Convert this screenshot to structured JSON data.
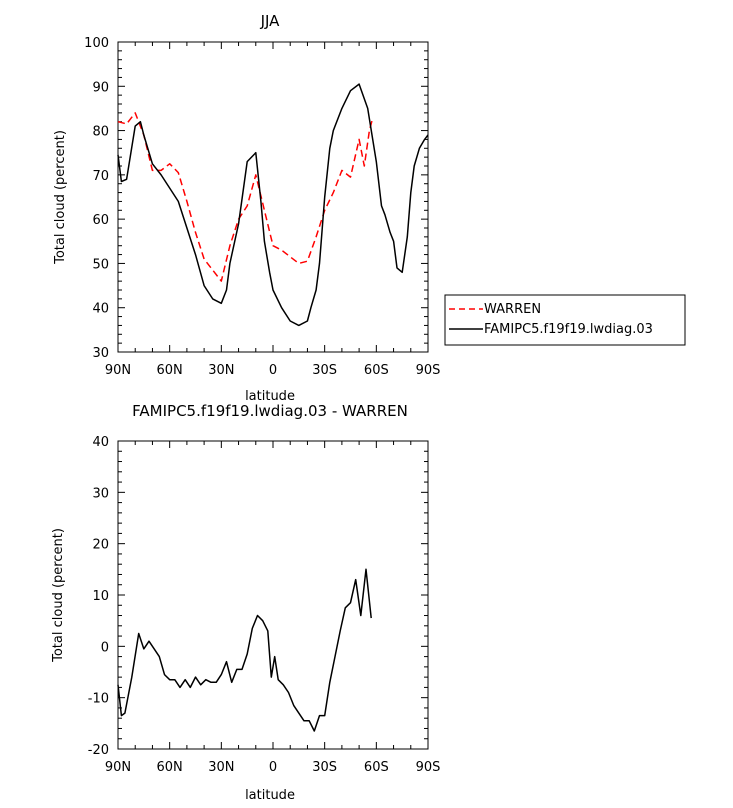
{
  "chart_data": [
    {
      "type": "line",
      "title": "JJA",
      "xlabel": "latitude",
      "ylabel": "Total cloud (percent)",
      "xlim": [
        90,
        -90
      ],
      "ylim": [
        30,
        100
      ],
      "x_ticks": [
        90,
        60,
        30,
        0,
        -30,
        -60,
        -90
      ],
      "x_tick_labels": [
        "90N",
        "60N",
        "30N",
        "0",
        "30S",
        "60S",
        "90S"
      ],
      "y_ticks": [
        30,
        40,
        50,
        60,
        70,
        80,
        90,
        100
      ],
      "y_tick_labels": [
        "30",
        "40",
        "50",
        "60",
        "70",
        "80",
        "90",
        "100"
      ],
      "legend": {
        "placement": "right"
      },
      "series": [
        {
          "name": "WARREN",
          "color": "#ff0000",
          "dash": "dashed",
          "x": [
            90,
            85,
            80,
            75,
            70,
            65,
            60,
            55,
            50,
            45,
            40,
            35,
            30,
            25,
            20,
            15,
            10,
            5,
            0,
            -5,
            -10,
            -15,
            -20,
            -25,
            -30,
            -35,
            -40,
            -45,
            -50,
            -53,
            -56,
            -58
          ],
          "y": [
            82,
            81.5,
            84,
            79,
            71,
            71,
            72.5,
            70.5,
            64,
            57,
            51,
            48.5,
            46,
            54,
            60,
            63,
            70,
            62,
            54,
            53,
            51.5,
            50,
            50.5,
            56,
            62,
            66,
            71,
            69.5,
            78,
            72,
            80,
            83
          ]
        },
        {
          "name": "FAMIPC5.f19f19.lwdiag.03",
          "color": "#000000",
          "dash": "solid",
          "x": [
            90,
            88,
            85,
            80,
            77,
            75,
            70,
            65,
            60,
            55,
            50,
            45,
            40,
            35,
            30,
            27,
            25,
            20,
            15,
            10,
            7,
            5,
            2,
            0,
            -5,
            -10,
            -15,
            -20,
            -22,
            -25,
            -27,
            -30,
            -33,
            -35,
            -40,
            -45,
            -50,
            -55,
            -60,
            -63,
            -65,
            -68,
            -70,
            -72,
            -75,
            -78,
            -80,
            -82,
            -85,
            -88,
            -90
          ],
          "y": [
            74.5,
            68.5,
            69,
            81,
            82,
            79,
            72.5,
            70,
            67,
            64,
            58,
            52,
            45,
            42,
            41,
            44,
            50,
            59,
            73,
            75,
            64,
            55,
            48,
            44,
            40,
            37,
            36,
            37,
            40,
            44,
            50,
            65,
            76,
            80,
            85,
            89,
            90.5,
            85,
            73,
            63,
            61,
            57,
            55,
            49,
            48,
            56,
            66,
            72,
            76,
            78,
            79
          ]
        }
      ]
    },
    {
      "type": "line",
      "title": "FAMIPC5.f19f19.lwdiag.03 - WARREN",
      "xlabel": "latitude",
      "ylabel": "Total cloud (percent)",
      "xlim": [
        90,
        -90
      ],
      "ylim": [
        -20,
        40
      ],
      "x_ticks": [
        90,
        60,
        30,
        0,
        -30,
        -60,
        -90
      ],
      "x_tick_labels": [
        "90N",
        "60N",
        "30N",
        "0",
        "30S",
        "60S",
        "90S"
      ],
      "y_ticks": [
        -20,
        -10,
        0,
        10,
        20,
        30,
        40
      ],
      "y_tick_labels": [
        "-20",
        "-10",
        "0",
        "10",
        "20",
        "30",
        "40"
      ],
      "series": [
        {
          "color": "#000000",
          "dash": "solid",
          "x": [
            90,
            88,
            86,
            82,
            78,
            75,
            72,
            69,
            66,
            63,
            60,
            57,
            54,
            51,
            48,
            45,
            42,
            39,
            36,
            33,
            30,
            27,
            24,
            21,
            18,
            15,
            12,
            9,
            6,
            3,
            1,
            -1,
            -3,
            -6,
            -9,
            -12,
            -15,
            -18,
            -21,
            -24,
            -27,
            -30,
            -33,
            -36,
            -39,
            -42,
            -45,
            -48,
            -51,
            -54,
            -57
          ],
          "y": [
            -7.5,
            -13.5,
            -13,
            -6,
            2.5,
            -0.5,
            1,
            -0.5,
            -2,
            -5.5,
            -6.5,
            -6.5,
            -8,
            -6.5,
            -8,
            -6,
            -7.5,
            -6.5,
            -7,
            -7,
            -5.5,
            -3,
            -7,
            -4.5,
            -4.5,
            -1.5,
            3.5,
            6,
            5,
            3,
            -6,
            -2,
            -6.5,
            -7.5,
            -9,
            -11.5,
            -13,
            -14.5,
            -14.5,
            -16.5,
            -13.5,
            -13.5,
            -7,
            -2,
            3,
            7.5,
            8.5,
            13,
            6,
            15,
            5.5
          ]
        }
      ]
    }
  ]
}
